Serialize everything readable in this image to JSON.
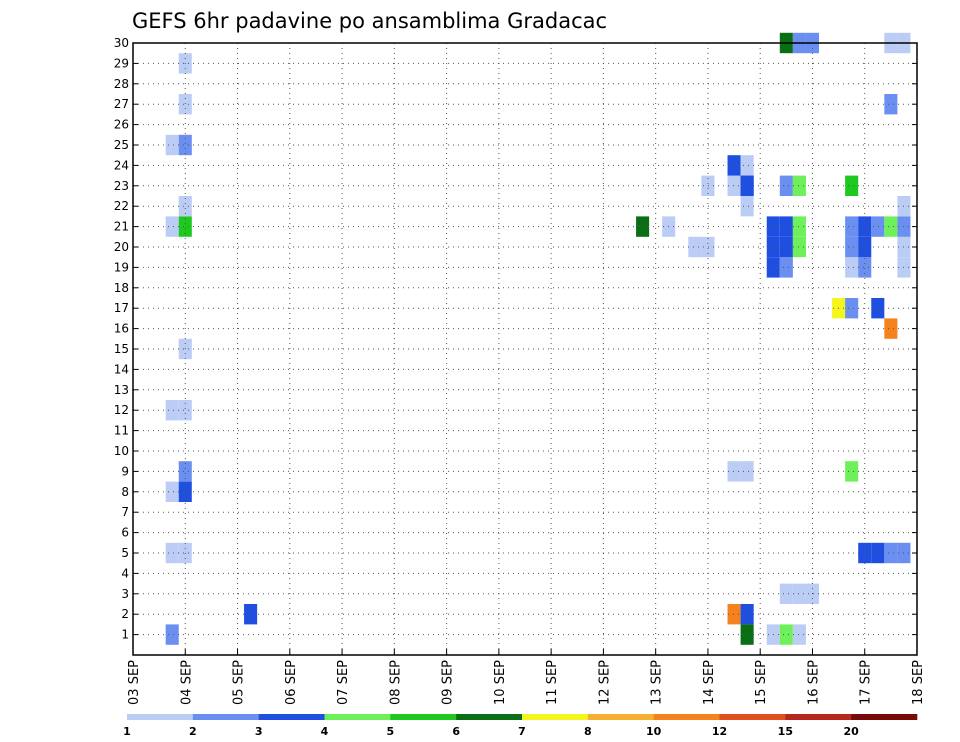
{
  "chart_data": {
    "type": "heatmap",
    "title": "GEFS 6hr padavine po ansamblima Gradacac",
    "y_ticks": [
      "1",
      "2",
      "3",
      "4",
      "5",
      "6",
      "7",
      "8",
      "9",
      "10",
      "11",
      "12",
      "13",
      "14",
      "15",
      "16",
      "17",
      "18",
      "19",
      "20",
      "21",
      "22",
      "23",
      "24",
      "25",
      "26",
      "27",
      "28",
      "29",
      "30"
    ],
    "x_ticks": [
      "03 SEP",
      "04 SEP",
      "05 SEP",
      "06 SEP",
      "07 SEP",
      "08 SEP",
      "09 SEP",
      "10 SEP",
      "11 SEP",
      "12 SEP",
      "13 SEP",
      "14 SEP",
      "15 SEP",
      "16 SEP",
      "17 SEP",
      "18 SEP"
    ],
    "x_range_days": [
      3,
      18
    ],
    "time_step_hours": 6,
    "y_range": [
      0,
      30
    ],
    "grid": true,
    "colorbar": {
      "labels": [
        "1",
        "2",
        "3",
        "4",
        "5",
        "6",
        "7",
        "8",
        "10",
        "12",
        "15",
        "20"
      ],
      "colors": [
        "#bccdf5",
        "#6a8ff0",
        "#1f4fe0",
        "#6ef05a",
        "#1ec81e",
        "#0a6e14",
        "#f5f51e",
        "#f5b030",
        "#f5821e",
        "#e1501e",
        "#b4281e",
        "#780a0a"
      ]
    },
    "cells": [
      {
        "day": 3.75,
        "member": 1,
        "level": 2
      },
      {
        "day": 3.75,
        "member": 5,
        "level": 1
      },
      {
        "day": 4.0,
        "member": 5,
        "level": 1
      },
      {
        "day": 3.75,
        "member": 8,
        "level": 1
      },
      {
        "day": 4.0,
        "member": 8,
        "level": 3
      },
      {
        "day": 4.0,
        "member": 9,
        "level": 2
      },
      {
        "day": 3.75,
        "member": 12,
        "level": 1
      },
      {
        "day": 4.0,
        "member": 12,
        "level": 1
      },
      {
        "day": 4.0,
        "member": 15,
        "level": 1
      },
      {
        "day": 3.75,
        "member": 21,
        "level": 1
      },
      {
        "day": 4.0,
        "member": 21,
        "level": 5
      },
      {
        "day": 4.0,
        "member": 22,
        "level": 1
      },
      {
        "day": 3.75,
        "member": 25,
        "level": 1
      },
      {
        "day": 4.0,
        "member": 25,
        "level": 2
      },
      {
        "day": 4.0,
        "member": 27,
        "level": 1
      },
      {
        "day": 4.0,
        "member": 29,
        "level": 1
      },
      {
        "day": 5.25,
        "member": 2,
        "level": 3
      },
      {
        "day": 12.75,
        "member": 21,
        "level": 6
      },
      {
        "day": 13.25,
        "member": 21,
        "level": 1
      },
      {
        "day": 13.75,
        "member": 20,
        "level": 1
      },
      {
        "day": 14.0,
        "member": 20,
        "level": 1
      },
      {
        "day": 14.0,
        "member": 23,
        "level": 1
      },
      {
        "day": 14.5,
        "member": 2,
        "level": 9
      },
      {
        "day": 14.5,
        "member": 9,
        "level": 1
      },
      {
        "day": 14.75,
        "member": 9,
        "level": 1
      },
      {
        "day": 14.5,
        "member": 23,
        "level": 1
      },
      {
        "day": 14.75,
        "member": 23,
        "level": 3
      },
      {
        "day": 14.5,
        "member": 24,
        "level": 3
      },
      {
        "day": 14.75,
        "member": 24,
        "level": 1
      },
      {
        "day": 14.75,
        "member": 22,
        "level": 1
      },
      {
        "day": 14.75,
        "member": 22.999,
        "level": 3
      },
      {
        "day": 14.75,
        "member": 1,
        "level": 6
      },
      {
        "day": 14.75,
        "member": 2,
        "level": 3
      },
      {
        "day": 15.25,
        "member": 1,
        "level": 1
      },
      {
        "day": 15.5,
        "member": 1,
        "level": 4
      },
      {
        "day": 15.75,
        "member": 1,
        "level": 1
      },
      {
        "day": 15.5,
        "member": 3,
        "level": 1
      },
      {
        "day": 15.75,
        "member": 3,
        "level": 1
      },
      {
        "day": 16.0,
        "member": 3,
        "level": 1
      },
      {
        "day": 15.25,
        "member": 19,
        "level": 3
      },
      {
        "day": 15.5,
        "member": 19,
        "level": 2
      },
      {
        "day": 15.25,
        "member": 20,
        "level": 3
      },
      {
        "day": 15.5,
        "member": 20,
        "level": 3
      },
      {
        "day": 15.75,
        "member": 20,
        "level": 4
      },
      {
        "day": 15.25,
        "member": 21,
        "level": 3
      },
      {
        "day": 15.5,
        "member": 21,
        "level": 3
      },
      {
        "day": 15.75,
        "member": 21,
        "level": 4
      },
      {
        "day": 15.5,
        "member": 23,
        "level": 2
      },
      {
        "day": 15.75,
        "member": 23,
        "level": 4
      },
      {
        "day": 15.5,
        "member": 30,
        "level": 6
      },
      {
        "day": 15.75,
        "member": 30,
        "level": 2
      },
      {
        "day": 16.0,
        "member": 30,
        "level": 2
      },
      {
        "day": 16.5,
        "member": 17,
        "level": 7
      },
      {
        "day": 16.75,
        "member": 17,
        "level": 2
      },
      {
        "day": 16.75,
        "member": 9,
        "level": 4
      },
      {
        "day": 16.75,
        "member": 19,
        "level": 1
      },
      {
        "day": 17.0,
        "member": 19,
        "level": 2
      },
      {
        "day": 16.75,
        "member": 20,
        "level": 2
      },
      {
        "day": 17.0,
        "member": 20,
        "level": 3
      },
      {
        "day": 16.75,
        "member": 21,
        "level": 2
      },
      {
        "day": 17.0,
        "member": 21,
        "level": 3
      },
      {
        "day": 17.25,
        "member": 21,
        "level": 2
      },
      {
        "day": 17.5,
        "member": 21,
        "level": 4
      },
      {
        "day": 16.75,
        "member": 23,
        "level": 5
      },
      {
        "day": 17.0,
        "member": 5,
        "level": 3
      },
      {
        "day": 17.25,
        "member": 5,
        "level": 3
      },
      {
        "day": 17.5,
        "member": 5,
        "level": 2
      },
      {
        "day": 17.75,
        "member": 5,
        "level": 2
      },
      {
        "day": 17.25,
        "member": 17,
        "level": 3
      },
      {
        "day": 17.5,
        "member": 16,
        "level": 9
      },
      {
        "day": 17.5,
        "member": 27,
        "level": 2
      },
      {
        "day": 17.5,
        "member": 30,
        "level": 1
      },
      {
        "day": 17.75,
        "member": 30,
        "level": 1
      },
      {
        "day": 17.75,
        "member": 19,
        "level": 1
      },
      {
        "day": 17.75,
        "member": 20,
        "level": 1
      },
      {
        "day": 17.75,
        "member": 21,
        "level": 2
      },
      {
        "day": 17.75,
        "member": 22,
        "level": 1
      }
    ]
  }
}
